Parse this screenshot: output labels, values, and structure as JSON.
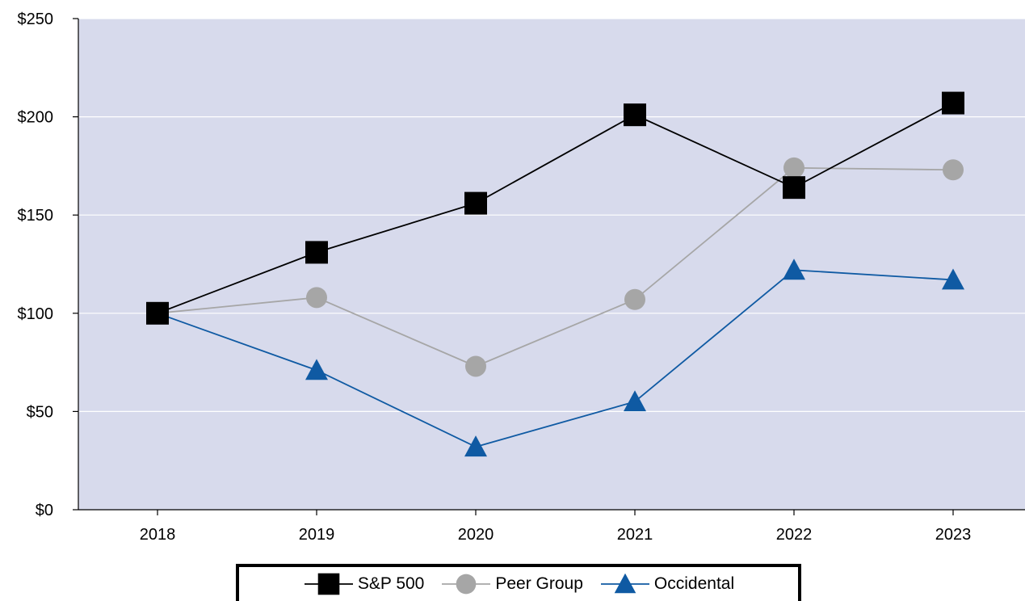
{
  "chart_data": {
    "type": "line",
    "categories": [
      "2018",
      "2019",
      "2020",
      "2021",
      "2022",
      "2023"
    ],
    "ylim": [
      0,
      250
    ],
    "yticks": [
      0,
      50,
      100,
      150,
      200,
      250
    ],
    "ytick_labels": [
      "$0",
      "$50",
      "$100",
      "$150",
      "$200",
      "$250"
    ],
    "grid": true,
    "legend_position": "bottom",
    "plot_background": "#d7daec",
    "series": [
      {
        "name": "S&P 500",
        "color": "#000000",
        "marker": "square",
        "values": [
          100,
          131,
          156,
          201,
          164,
          207
        ]
      },
      {
        "name": "Peer Group",
        "color": "#a6a6a6",
        "marker": "circle",
        "values": [
          100,
          108,
          73,
          107,
          174,
          173
        ]
      },
      {
        "name": "Occidental",
        "color": "#0f5aa3",
        "marker": "triangle",
        "values": [
          100,
          71,
          32,
          55,
          122,
          117
        ]
      }
    ]
  }
}
